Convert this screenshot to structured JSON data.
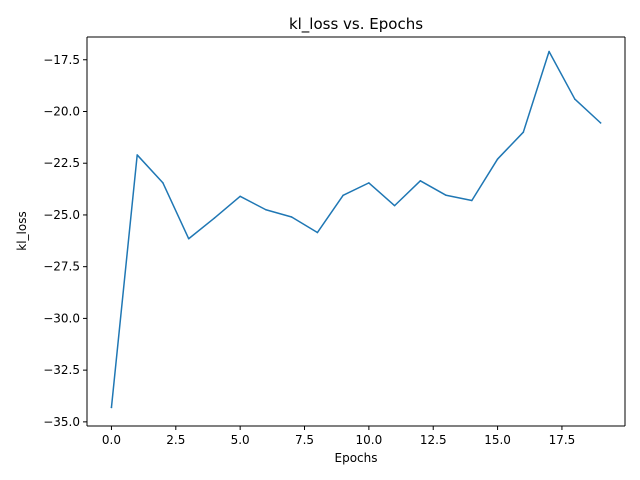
{
  "chart_data": {
    "type": "line",
    "title": "kl_loss vs. Epochs",
    "xlabel": "Epochs",
    "ylabel": "kl_loss",
    "xlim": [
      -0.95,
      19.95
    ],
    "ylim": [
      -35.2,
      -16.4
    ],
    "x_ticks": [
      0.0,
      2.5,
      5.0,
      7.5,
      10.0,
      12.5,
      15.0,
      17.5
    ],
    "x_tick_labels": [
      "0.0",
      "2.5",
      "5.0",
      "7.5",
      "10.0",
      "12.5",
      "15.0",
      "17.5"
    ],
    "y_ticks": [
      -35.0,
      -32.5,
      -30.0,
      -27.5,
      -25.0,
      -22.5,
      -20.0,
      -17.5
    ],
    "y_tick_labels": [
      "−35.0",
      "−32.5",
      "−30.0",
      "−27.5",
      "−25.0",
      "−22.5",
      "−20.0",
      "−17.5"
    ],
    "grid": false,
    "series": [
      {
        "color": "#1f77b4",
        "x": [
          0,
          1,
          2,
          3,
          4,
          5,
          6,
          7,
          8,
          9,
          10,
          11,
          12,
          13,
          14,
          15,
          16,
          17,
          18,
          19
        ],
        "y": [
          -34.3,
          -22.1,
          -23.45,
          -26.15,
          -25.15,
          -24.1,
          -24.75,
          -25.1,
          -25.85,
          -24.05,
          -23.45,
          -24.55,
          -23.35,
          -24.05,
          -24.3,
          -22.3,
          -21.0,
          -17.1,
          -19.4,
          -20.55
        ]
      }
    ]
  }
}
